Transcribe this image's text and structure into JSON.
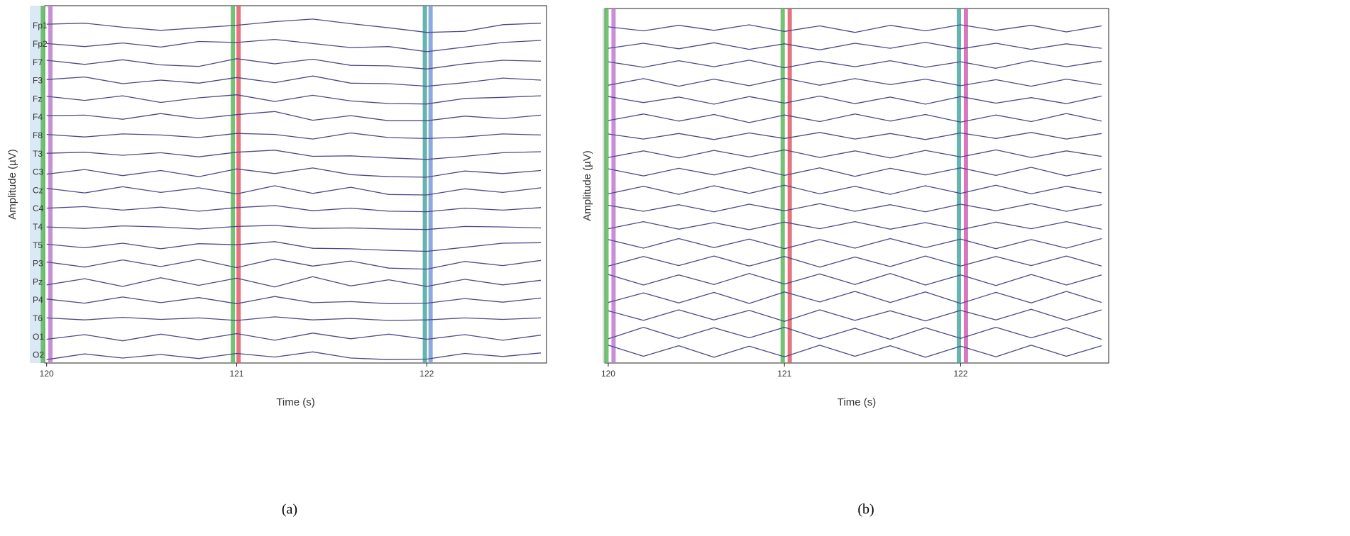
{
  "chart_data": [
    {
      "type": "line",
      "caption": "(a)",
      "xlabel": "Time (s)",
      "ylabel": "Amplitude (µV)",
      "xlim": [
        119.99,
        122.63
      ],
      "xticks": [
        120,
        121,
        122
      ],
      "ylim": [
        -25,
        25
      ],
      "x": [
        120,
        120.2,
        120.4,
        120.6,
        120.8,
        121,
        121.2,
        121.4,
        121.6,
        121.8,
        122,
        122.2,
        122.4,
        122.6
      ],
      "vlines": [
        {
          "x": 119.98,
          "color": "#5cb85c"
        },
        {
          "x": 120.02,
          "color": "#c07ad0"
        },
        {
          "x": 120.98,
          "color": "#5cb85c"
        },
        {
          "x": 121.01,
          "color": "#e05a6a"
        },
        {
          "x": 121.99,
          "color": "#4aa8a0"
        },
        {
          "x": 122.02,
          "color": "#7a9ad8"
        }
      ],
      "series": [
        {
          "name": "Fp1",
          "color": "#4b4a86",
          "values": [
            4,
            6,
            -2,
            -8,
            -3,
            2,
            9,
            14,
            5,
            -3,
            -12,
            -10,
            3,
            6
          ]
        },
        {
          "name": "Fp2",
          "color": "#4b4a86",
          "values": [
            2,
            -4,
            3,
            -5,
            6,
            4,
            10,
            2,
            -6,
            -4,
            -14,
            -5,
            4,
            8
          ]
        },
        {
          "name": "F7",
          "color": "#4b4a86",
          "values": [
            5,
            -3,
            6,
            -4,
            -7,
            8,
            -2,
            7,
            -5,
            -6,
            -12,
            -2,
            5,
            3
          ]
        },
        {
          "name": "F3",
          "color": "#4b4a86",
          "values": [
            3,
            8,
            -5,
            2,
            -4,
            7,
            -3,
            10,
            -4,
            -5,
            -10,
            -3,
            6,
            2
          ]
        },
        {
          "name": "Fz",
          "color": "#4b4a86",
          "values": [
            6,
            -2,
            7,
            -6,
            3,
            9,
            -4,
            8,
            -3,
            -8,
            -9,
            2,
            4,
            7
          ]
        },
        {
          "name": "F4",
          "color": "#4b4a86",
          "values": [
            4,
            5,
            -3,
            8,
            -2,
            6,
            12,
            -5,
            4,
            -6,
            -6,
            3,
            -2,
            5
          ]
        },
        {
          "name": "F8",
          "color": "#4b4a86",
          "values": [
            3,
            -2,
            4,
            2,
            -3,
            5,
            3,
            -6,
            6,
            -3,
            -5,
            -2,
            4,
            2
          ]
        },
        {
          "name": "T3",
          "color": "#4b4a86",
          "values": [
            2,
            4,
            -2,
            3,
            -5,
            4,
            8,
            -4,
            -3,
            -7,
            -10,
            -4,
            3,
            5
          ]
        },
        {
          "name": "C3",
          "color": "#4b4a86",
          "values": [
            -3,
            6,
            -6,
            4,
            -8,
            7,
            -2,
            9,
            -4,
            -8,
            -9,
            3,
            -2,
            4
          ]
        },
        {
          "name": "Cz",
          "color": "#4b4a86",
          "values": [
            5,
            -4,
            8,
            -3,
            6,
            -6,
            10,
            -5,
            7,
            -7,
            -8,
            4,
            -3,
            6
          ]
        },
        {
          "name": "C4",
          "color": "#4b4a86",
          "values": [
            2,
            5,
            -2,
            4,
            -4,
            3,
            7,
            -3,
            2,
            -4,
            -5,
            2,
            -2,
            3
          ]
        },
        {
          "name": "T4",
          "color": "#4b4a86",
          "values": [
            1,
            -2,
            3,
            1,
            -3,
            2,
            4,
            -2,
            -1,
            -3,
            -4,
            2,
            1,
            -1
          ]
        },
        {
          "name": "T5",
          "color": "#4b4a86",
          "values": [
            3,
            -4,
            5,
            -6,
            4,
            2,
            8,
            -5,
            -6,
            -9,
            -11,
            -3,
            5,
            6
          ]
        },
        {
          "name": "P3",
          "color": "#4b4a86",
          "values": [
            4,
            -6,
            8,
            -5,
            9,
            -7,
            10,
            -4,
            6,
            -8,
            -10,
            5,
            -3,
            7
          ]
        },
        {
          "name": "Pz",
          "color": "#4b4a86",
          "values": [
            -5,
            7,
            -8,
            9,
            -6,
            8,
            -9,
            11,
            -7,
            5,
            -8,
            6,
            -5,
            4
          ]
        },
        {
          "name": "P4",
          "color": "#4b4a86",
          "values": [
            3,
            -5,
            7,
            -4,
            6,
            -6,
            8,
            -4,
            -2,
            -6,
            -5,
            4,
            -3,
            5
          ]
        },
        {
          "name": "T6",
          "color": "#4b4a86",
          "values": [
            2,
            -2,
            3,
            -1,
            2,
            -3,
            4,
            -2,
            1,
            -3,
            -2,
            2,
            -1,
            2
          ]
        },
        {
          "name": "O1",
          "color": "#4b4a86",
          "values": [
            -4,
            5,
            -7,
            6,
            -5,
            7,
            -6,
            8,
            -3,
            6,
            -4,
            5,
            -6,
            4
          ]
        },
        {
          "name": "O2",
          "color": "#4b4a86",
          "values": [
            -8,
            3,
            -5,
            2,
            -6,
            4,
            -3,
            7,
            -5,
            -8,
            -7,
            4,
            -2,
            5
          ]
        }
      ]
    },
    {
      "type": "line",
      "caption": "(b)",
      "xlabel": "Time (s)",
      "ylabel": "Amplitude (µV)",
      "xlim": [
        119.98,
        122.84
      ],
      "xticks": [
        120,
        121,
        122
      ],
      "ylim": [
        -25,
        25
      ],
      "x": [
        120,
        120.2,
        120.4,
        120.6,
        120.8,
        121,
        121.2,
        121.4,
        121.6,
        121.8,
        122,
        122.2,
        122.4,
        122.6,
        122.8
      ],
      "vlines": [
        {
          "x": 119.99,
          "color": "#5cb85c"
        },
        {
          "x": 120.03,
          "color": "#c07ad0"
        },
        {
          "x": 120.99,
          "color": "#5cb85c"
        },
        {
          "x": 121.03,
          "color": "#e05a6a"
        },
        {
          "x": 121.99,
          "color": "#4aa8a0"
        },
        {
          "x": 122.03,
          "color": "#d060b0"
        }
      ],
      "series": [
        {
          "color": "#4b4a86",
          "values": [
            3,
            -5,
            6,
            -4,
            7,
            -6,
            5,
            -8,
            6,
            -5,
            7,
            -4,
            6,
            -7,
            5
          ]
        },
        {
          "color": "#4b4a86",
          "values": [
            -4,
            6,
            -5,
            7,
            -6,
            5,
            -7,
            6,
            -4,
            8,
            -5,
            6,
            -6,
            5,
            -4
          ]
        },
        {
          "color": "#4b4a86",
          "values": [
            5,
            -6,
            7,
            -5,
            8,
            -7,
            6,
            -5,
            7,
            -6,
            5,
            -8,
            7,
            -5,
            6
          ]
        },
        {
          "color": "#4b4a86",
          "values": [
            -6,
            7,
            -8,
            6,
            -7,
            8,
            -6,
            7,
            -5,
            6,
            -7,
            5,
            -8,
            6,
            -5
          ]
        },
        {
          "color": "#4b4a86",
          "values": [
            7,
            -5,
            6,
            -8,
            7,
            -6,
            8,
            -7,
            6,
            -8,
            7,
            -6,
            5,
            -7,
            8
          ]
        },
        {
          "color": "#4b4a86",
          "values": [
            -5,
            8,
            -6,
            7,
            -9,
            6,
            -7,
            8,
            -6,
            7,
            -8,
            6,
            -7,
            9,
            -6
          ]
        },
        {
          "color": "#4b4a86",
          "values": [
            4,
            -6,
            5,
            -7,
            6,
            -5,
            7,
            -6,
            5,
            -7,
            6,
            -5,
            7,
            -6,
            5
          ]
        },
        {
          "color": "#4b4a86",
          "values": [
            -7,
            6,
            -8,
            7,
            -6,
            8,
            -7,
            6,
            -8,
            7,
            -6,
            8,
            -7,
            6,
            -5
          ]
        },
        {
          "color": "#4b4a86",
          "values": [
            6,
            -8,
            7,
            -6,
            9,
            -7,
            8,
            -9,
            7,
            -6,
            8,
            -7,
            9,
            -8,
            6
          ]
        },
        {
          "color": "#4b4a86",
          "values": [
            -8,
            7,
            -9,
            8,
            -7,
            9,
            -8,
            7,
            -9,
            8,
            -7,
            9,
            -8,
            7,
            -6
          ]
        },
        {
          "color": "#4b4a86",
          "values": [
            5,
            -7,
            6,
            -8,
            7,
            -6,
            8,
            -7,
            6,
            -8,
            7,
            -6,
            8,
            -7,
            6
          ]
        },
        {
          "color": "#4b4a86",
          "values": [
            -6,
            8,
            -7,
            6,
            -8,
            7,
            -6,
            8,
            -7,
            6,
            -8,
            7,
            -6,
            8,
            -7
          ]
        },
        {
          "color": "#4b4a86",
          "values": [
            8,
            -9,
            10,
            -8,
            9,
            -10,
            8,
            -9,
            10,
            -8,
            9,
            -10,
            8,
            -9,
            10
          ]
        },
        {
          "color": "#4b4a86",
          "values": [
            -9,
            10,
            -8,
            11,
            -9,
            10,
            -11,
            9,
            -10,
            11,
            -9,
            10,
            -8,
            11,
            -9
          ]
        },
        {
          "color": "#4b4a86",
          "values": [
            10,
            -11,
            9,
            -10,
            12,
            -9,
            11,
            -10,
            12,
            -11,
            9,
            -12,
            10,
            -11,
            9
          ]
        },
        {
          "color": "#4b4a86",
          "values": [
            -10,
            9,
            -11,
            10,
            -12,
            11,
            -9,
            12,
            -10,
            11,
            -12,
            10,
            -11,
            12,
            -10
          ]
        },
        {
          "color": "#4b4a86",
          "values": [
            9,
            -10,
            11,
            -9,
            10,
            -12,
            11,
            -10,
            9,
            -11,
            10,
            -9,
            12,
            -10,
            11
          ]
        },
        {
          "color": "#4b4a86",
          "values": [
            -11,
            12,
            -10,
            11,
            -9,
            12,
            -11,
            10,
            -12,
            11,
            -10,
            12,
            -9,
            11,
            -12
          ]
        },
        {
          "color": "#4b4a86",
          "values": [
            12,
            -10,
            11,
            -12,
            10,
            -11,
            12,
            -10,
            11,
            -12,
            10,
            -11,
            12,
            -10,
            11
          ]
        }
      ]
    }
  ]
}
